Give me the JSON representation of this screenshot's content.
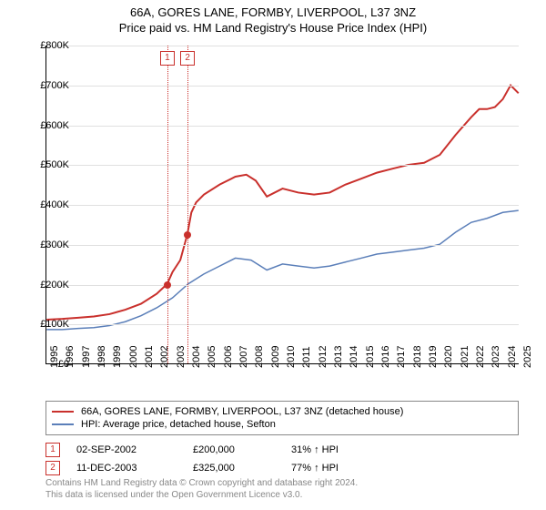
{
  "title_line1": "66A, GORES LANE, FORMBY, LIVERPOOL, L37 3NZ",
  "title_line2": "Price paid vs. HM Land Registry's House Price Index (HPI)",
  "chart": {
    "type": "line",
    "background_color": "#ffffff",
    "grid_color": "#e0e0e0",
    "axis_color": "#000000",
    "xlim": [
      1995,
      2025
    ],
    "ylim": [
      0,
      800000
    ],
    "ytick_step": 100000,
    "yticks": [
      "£0",
      "£100K",
      "£200K",
      "£300K",
      "£400K",
      "£500K",
      "£600K",
      "£700K",
      "£800K"
    ],
    "xticks": [
      1995,
      1996,
      1997,
      1998,
      1999,
      2000,
      2001,
      2002,
      2003,
      2004,
      2005,
      2006,
      2007,
      2008,
      2009,
      2010,
      2011,
      2012,
      2013,
      2014,
      2015,
      2016,
      2017,
      2018,
      2019,
      2020,
      2021,
      2022,
      2023,
      2024,
      2025
    ],
    "series": {
      "property": {
        "label": "66A, GORES LANE, FORMBY, LIVERPOOL, L37 3NZ (detached house)",
        "color": "#c9302c",
        "line_width": 2,
        "points": [
          [
            1995,
            110000
          ],
          [
            1996,
            112000
          ],
          [
            1997,
            115000
          ],
          [
            1998,
            118000
          ],
          [
            1999,
            124000
          ],
          [
            2000,
            135000
          ],
          [
            2001,
            150000
          ],
          [
            2002,
            175000
          ],
          [
            2002.67,
            200000
          ],
          [
            2003,
            230000
          ],
          [
            2003.5,
            260000
          ],
          [
            2003.95,
            325000
          ],
          [
            2004.2,
            380000
          ],
          [
            2004.5,
            405000
          ],
          [
            2005,
            425000
          ],
          [
            2006,
            450000
          ],
          [
            2007,
            470000
          ],
          [
            2007.7,
            475000
          ],
          [
            2008.3,
            460000
          ],
          [
            2009,
            420000
          ],
          [
            2010,
            440000
          ],
          [
            2011,
            430000
          ],
          [
            2012,
            425000
          ],
          [
            2013,
            430000
          ],
          [
            2014,
            450000
          ],
          [
            2015,
            465000
          ],
          [
            2016,
            480000
          ],
          [
            2017,
            490000
          ],
          [
            2018,
            500000
          ],
          [
            2019,
            505000
          ],
          [
            2020,
            525000
          ],
          [
            2021,
            575000
          ],
          [
            2022,
            620000
          ],
          [
            2022.5,
            640000
          ],
          [
            2023,
            640000
          ],
          [
            2023.5,
            645000
          ],
          [
            2024,
            665000
          ],
          [
            2024.5,
            700000
          ],
          [
            2025,
            680000
          ]
        ]
      },
      "hpi": {
        "label": "HPI: Average price, detached house, Sefton",
        "color": "#5b7fb9",
        "line_width": 1.5,
        "points": [
          [
            1995,
            85000
          ],
          [
            1996,
            85000
          ],
          [
            1997,
            88000
          ],
          [
            1998,
            90000
          ],
          [
            1999,
            95000
          ],
          [
            2000,
            105000
          ],
          [
            2001,
            120000
          ],
          [
            2002,
            140000
          ],
          [
            2003,
            165000
          ],
          [
            2004,
            200000
          ],
          [
            2005,
            225000
          ],
          [
            2006,
            245000
          ],
          [
            2007,
            265000
          ],
          [
            2008,
            260000
          ],
          [
            2009,
            235000
          ],
          [
            2010,
            250000
          ],
          [
            2011,
            245000
          ],
          [
            2012,
            240000
          ],
          [
            2013,
            245000
          ],
          [
            2014,
            255000
          ],
          [
            2015,
            265000
          ],
          [
            2016,
            275000
          ],
          [
            2017,
            280000
          ],
          [
            2018,
            285000
          ],
          [
            2019,
            290000
          ],
          [
            2020,
            300000
          ],
          [
            2021,
            330000
          ],
          [
            2022,
            355000
          ],
          [
            2023,
            365000
          ],
          [
            2024,
            380000
          ],
          [
            2025,
            385000
          ]
        ]
      }
    },
    "sale_markers": [
      {
        "n": "1",
        "year": 2002.67,
        "price": 200000
      },
      {
        "n": "2",
        "year": 2003.95,
        "price": 325000
      }
    ]
  },
  "legend": {
    "items": [
      {
        "label": "66A, GORES LANE, FORMBY, LIVERPOOL, L37 3NZ (detached house)",
        "color": "#c9302c"
      },
      {
        "label": "HPI: Average price, detached house, Sefton",
        "color": "#5b7fb9"
      }
    ]
  },
  "sales": [
    {
      "n": "1",
      "date": "02-SEP-2002",
      "price": "£200,000",
      "pct": "31% ↑ HPI"
    },
    {
      "n": "2",
      "date": "11-DEC-2003",
      "price": "£325,000",
      "pct": "77% ↑ HPI"
    }
  ],
  "footer_line1": "Contains HM Land Registry data © Crown copyright and database right 2024.",
  "footer_line2": "This data is licensed under the Open Government Licence v3.0."
}
